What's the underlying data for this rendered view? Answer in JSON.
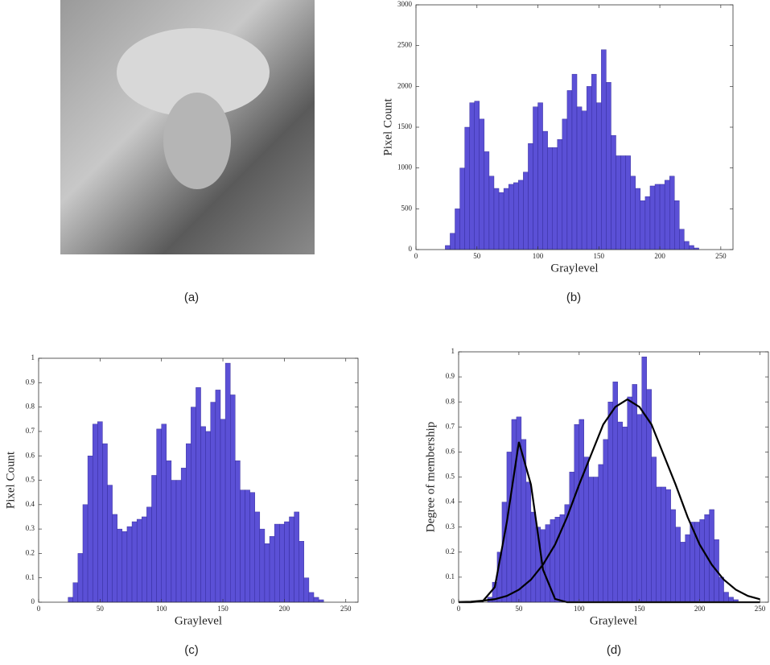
{
  "image_panel": {
    "caption": "(a)"
  },
  "chart_data": [
    {
      "type": "histogram",
      "caption": "(b)",
      "xlabel": "Graylevel",
      "ylabel": "Pixel Count",
      "color": "#5b50d6",
      "edge_color": "#2c2490",
      "bins": [
        20,
        24,
        28,
        32,
        36,
        40,
        44,
        48,
        52,
        56,
        60,
        64,
        68,
        72,
        76,
        80,
        84,
        88,
        92,
        96,
        100,
        104,
        108,
        112,
        116,
        120,
        124,
        128,
        132,
        136,
        140,
        144,
        148,
        152,
        156,
        160,
        164,
        168,
        172,
        176,
        180,
        184,
        188,
        192,
        196,
        200,
        204,
        208,
        212,
        216,
        220,
        224,
        228,
        232,
        236
      ],
      "counts": [
        0,
        50,
        200,
        500,
        1000,
        1500,
        1800,
        1820,
        1600,
        1200,
        900,
        750,
        700,
        750,
        800,
        820,
        850,
        950,
        1300,
        1750,
        1800,
        1450,
        1250,
        1250,
        1350,
        1600,
        1950,
        2150,
        1750,
        1700,
        2000,
        2150,
        1800,
        2450,
        2050,
        1400,
        1150,
        1150,
        1150,
        900,
        750,
        600,
        650,
        780,
        800,
        800,
        850,
        900,
        600,
        250,
        100,
        50,
        20,
        0
      ],
      "xlim": [
        0,
        260
      ],
      "ylim": [
        0,
        3000
      ],
      "xticks": [
        0,
        50,
        100,
        150,
        200,
        250
      ],
      "yticks": [
        0,
        500,
        1000,
        1500,
        2000,
        2500,
        3000
      ]
    },
    {
      "type": "histogram",
      "caption": "(c)",
      "xlabel": "Graylevel",
      "ylabel": "Pixel Count",
      "color": "#5b50d6",
      "edge_color": "#2c2490",
      "bins": [
        20,
        24,
        28,
        32,
        36,
        40,
        44,
        48,
        52,
        56,
        60,
        64,
        68,
        72,
        76,
        80,
        84,
        88,
        92,
        96,
        100,
        104,
        108,
        112,
        116,
        120,
        124,
        128,
        132,
        136,
        140,
        144,
        148,
        152,
        156,
        160,
        164,
        168,
        172,
        176,
        180,
        184,
        188,
        192,
        196,
        200,
        204,
        208,
        212,
        216,
        220,
        224,
        228,
        232,
        236
      ],
      "counts": [
        0,
        0.02,
        0.08,
        0.2,
        0.4,
        0.6,
        0.73,
        0.74,
        0.65,
        0.48,
        0.36,
        0.3,
        0.29,
        0.31,
        0.33,
        0.34,
        0.35,
        0.39,
        0.52,
        0.71,
        0.73,
        0.58,
        0.5,
        0.5,
        0.55,
        0.65,
        0.8,
        0.88,
        0.72,
        0.7,
        0.82,
        0.87,
        0.75,
        0.98,
        0.85,
        0.58,
        0.46,
        0.46,
        0.45,
        0.37,
        0.3,
        0.24,
        0.27,
        0.32,
        0.32,
        0.33,
        0.35,
        0.37,
        0.25,
        0.1,
        0.04,
        0.02,
        0.01,
        0
      ],
      "xlim": [
        0,
        260
      ],
      "ylim": [
        0,
        1
      ],
      "xticks": [
        0,
        50,
        100,
        150,
        200,
        250
      ],
      "yticks": [
        0,
        0.1,
        0.2,
        0.3,
        0.4,
        0.5,
        0.6,
        0.7,
        0.8,
        0.9,
        1
      ]
    },
    {
      "type": "histogram",
      "caption": "(d)",
      "xlabel": "Graylevel",
      "ylabel": "Degree of membership",
      "color": "#5b50d6",
      "edge_color": "#2c2490",
      "bins": [
        20,
        24,
        28,
        32,
        36,
        40,
        44,
        48,
        52,
        56,
        60,
        64,
        68,
        72,
        76,
        80,
        84,
        88,
        92,
        96,
        100,
        104,
        108,
        112,
        116,
        120,
        124,
        128,
        132,
        136,
        140,
        144,
        148,
        152,
        156,
        160,
        164,
        168,
        172,
        176,
        180,
        184,
        188,
        192,
        196,
        200,
        204,
        208,
        212,
        216,
        220,
        224,
        228,
        232,
        236
      ],
      "counts": [
        0,
        0.02,
        0.08,
        0.2,
        0.4,
        0.6,
        0.73,
        0.74,
        0.65,
        0.48,
        0.36,
        0.3,
        0.29,
        0.31,
        0.33,
        0.34,
        0.35,
        0.39,
        0.52,
        0.71,
        0.73,
        0.58,
        0.5,
        0.5,
        0.55,
        0.65,
        0.8,
        0.88,
        0.72,
        0.7,
        0.82,
        0.87,
        0.75,
        0.98,
        0.85,
        0.58,
        0.46,
        0.46,
        0.45,
        0.37,
        0.3,
        0.24,
        0.27,
        0.32,
        0.32,
        0.33,
        0.35,
        0.37,
        0.25,
        0.1,
        0.04,
        0.02,
        0.01,
        0
      ],
      "series": [
        {
          "color": "#000000",
          "x": [
            0,
            10,
            20,
            30,
            40,
            50,
            60,
            70,
            80,
            90,
            100,
            110,
            120,
            130,
            140,
            150,
            160,
            170,
            180,
            190,
            200,
            210,
            220,
            230,
            240,
            250
          ],
          "values": [
            0,
            0,
            0.004,
            0.06,
            0.32,
            0.64,
            0.47,
            0.13,
            0.013,
            0,
            0,
            0,
            0,
            0,
            0,
            0,
            0,
            0,
            0,
            0,
            0,
            0,
            0,
            0,
            0,
            0
          ]
        },
        {
          "color": "#000000",
          "x": [
            0,
            10,
            20,
            30,
            40,
            50,
            60,
            70,
            80,
            90,
            100,
            110,
            120,
            130,
            140,
            150,
            160,
            170,
            180,
            190,
            200,
            210,
            220,
            230,
            240,
            250
          ],
          "values": [
            0.001,
            0.002,
            0.006,
            0.012,
            0.025,
            0.05,
            0.09,
            0.15,
            0.23,
            0.34,
            0.47,
            0.59,
            0.71,
            0.78,
            0.81,
            0.78,
            0.71,
            0.59,
            0.47,
            0.34,
            0.23,
            0.15,
            0.09,
            0.05,
            0.025,
            0.012
          ]
        }
      ],
      "xlim": [
        0,
        257
      ],
      "ylim": [
        0,
        1
      ],
      "xticks": [
        0,
        50,
        100,
        150,
        200,
        250
      ],
      "yticks": [
        0,
        0.1,
        0.2,
        0.3,
        0.4,
        0.5,
        0.6,
        0.7,
        0.8,
        0.9,
        1
      ]
    }
  ]
}
